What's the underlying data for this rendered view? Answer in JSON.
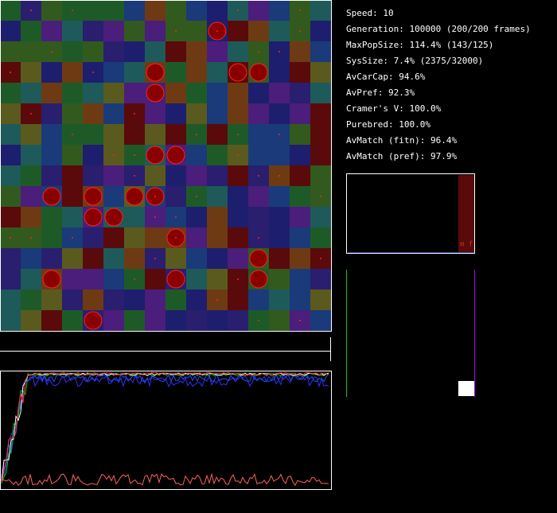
{
  "stats": [
    "Speed: 10",
    "Generation: 100000 (200/200 frames)",
    "MaxPopSize: 114.4% (143/125)",
    "SysSize: 7.4% (2375/32000)",
    "AvCarCap: 94.6%",
    "AvPref: 92.3%",
    "Cramer's V: 100.0%",
    "Purebred: 100.0%",
    "AvMatch (fitn): 96.4%",
    "AvMatch (pref): 97.9%"
  ],
  "gene_panel": {
    "labels": [
      "m",
      "f"
    ]
  }
}
